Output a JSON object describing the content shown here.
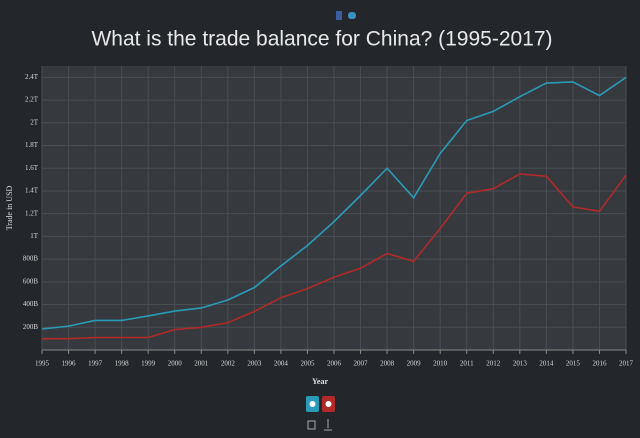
{
  "chart_data": {
    "type": "line",
    "title": "What is the trade balance for China? (1995-2017)",
    "x_label": "Year",
    "y_label": "Trade in USD",
    "x": [
      1995,
      1996,
      1997,
      1998,
      1999,
      2000,
      2001,
      2002,
      2003,
      2004,
      2005,
      2006,
      2007,
      2008,
      2009,
      2010,
      2011,
      2012,
      2013,
      2014,
      2015,
      2016,
      2017
    ],
    "series": [
      {
        "color": "#2a9bb7",
        "values": [
          185000000000,
          210000000000,
          260000000000,
          260000000000,
          300000000000,
          343000000000,
          370000000000,
          440000000000,
          550000000000,
          740000000000,
          920000000000,
          1130000000000,
          1360000000000,
          1600000000000,
          1340000000000,
          1730000000000,
          2020000000000,
          2100000000000,
          2230000000000,
          2350000000000,
          2360000000000,
          2240000000000,
          2400000000000
        ]
      },
      {
        "color": "#b02a2a",
        "values": [
          100000000000,
          100000000000,
          110000000000,
          110000000000,
          110000000000,
          180000000000,
          200000000000,
          240000000000,
          340000000000,
          460000000000,
          540000000000,
          640000000000,
          720000000000,
          850000000000,
          780000000000,
          1070000000000,
          1380000000000,
          1420000000000,
          1550000000000,
          1530000000000,
          1260000000000,
          1220000000000,
          1540000000000
        ]
      }
    ],
    "xlim": [
      1995,
      2017
    ],
    "xticks": [
      1995,
      1996,
      1997,
      1998,
      1999,
      2000,
      2001,
      2002,
      2003,
      2004,
      2005,
      2006,
      2007,
      2008,
      2009,
      2010,
      2011,
      2012,
      2013,
      2014,
      2015,
      2016,
      2017
    ],
    "ylim": [
      0,
      2500000000000
    ],
    "yticks": [
      {
        "value": 200000000000,
        "label": "200B"
      },
      {
        "value": 400000000000,
        "label": "400B"
      },
      {
        "value": 600000000000,
        "label": "600B"
      },
      {
        "value": 800000000000,
        "label": "800B"
      },
      {
        "value": 1000000000000,
        "label": "1T"
      },
      {
        "value": 1200000000000,
        "label": "1.2T"
      },
      {
        "value": 1400000000000,
        "label": "1.4T"
      },
      {
        "value": 1600000000000,
        "label": "1.6T"
      },
      {
        "value": 1800000000000,
        "label": "1.8T"
      },
      {
        "value": 2000000000000,
        "label": "2T"
      },
      {
        "value": 2200000000000,
        "label": "2.2T"
      },
      {
        "value": 2400000000000,
        "label": "2.4T"
      }
    ],
    "grid": true
  }
}
